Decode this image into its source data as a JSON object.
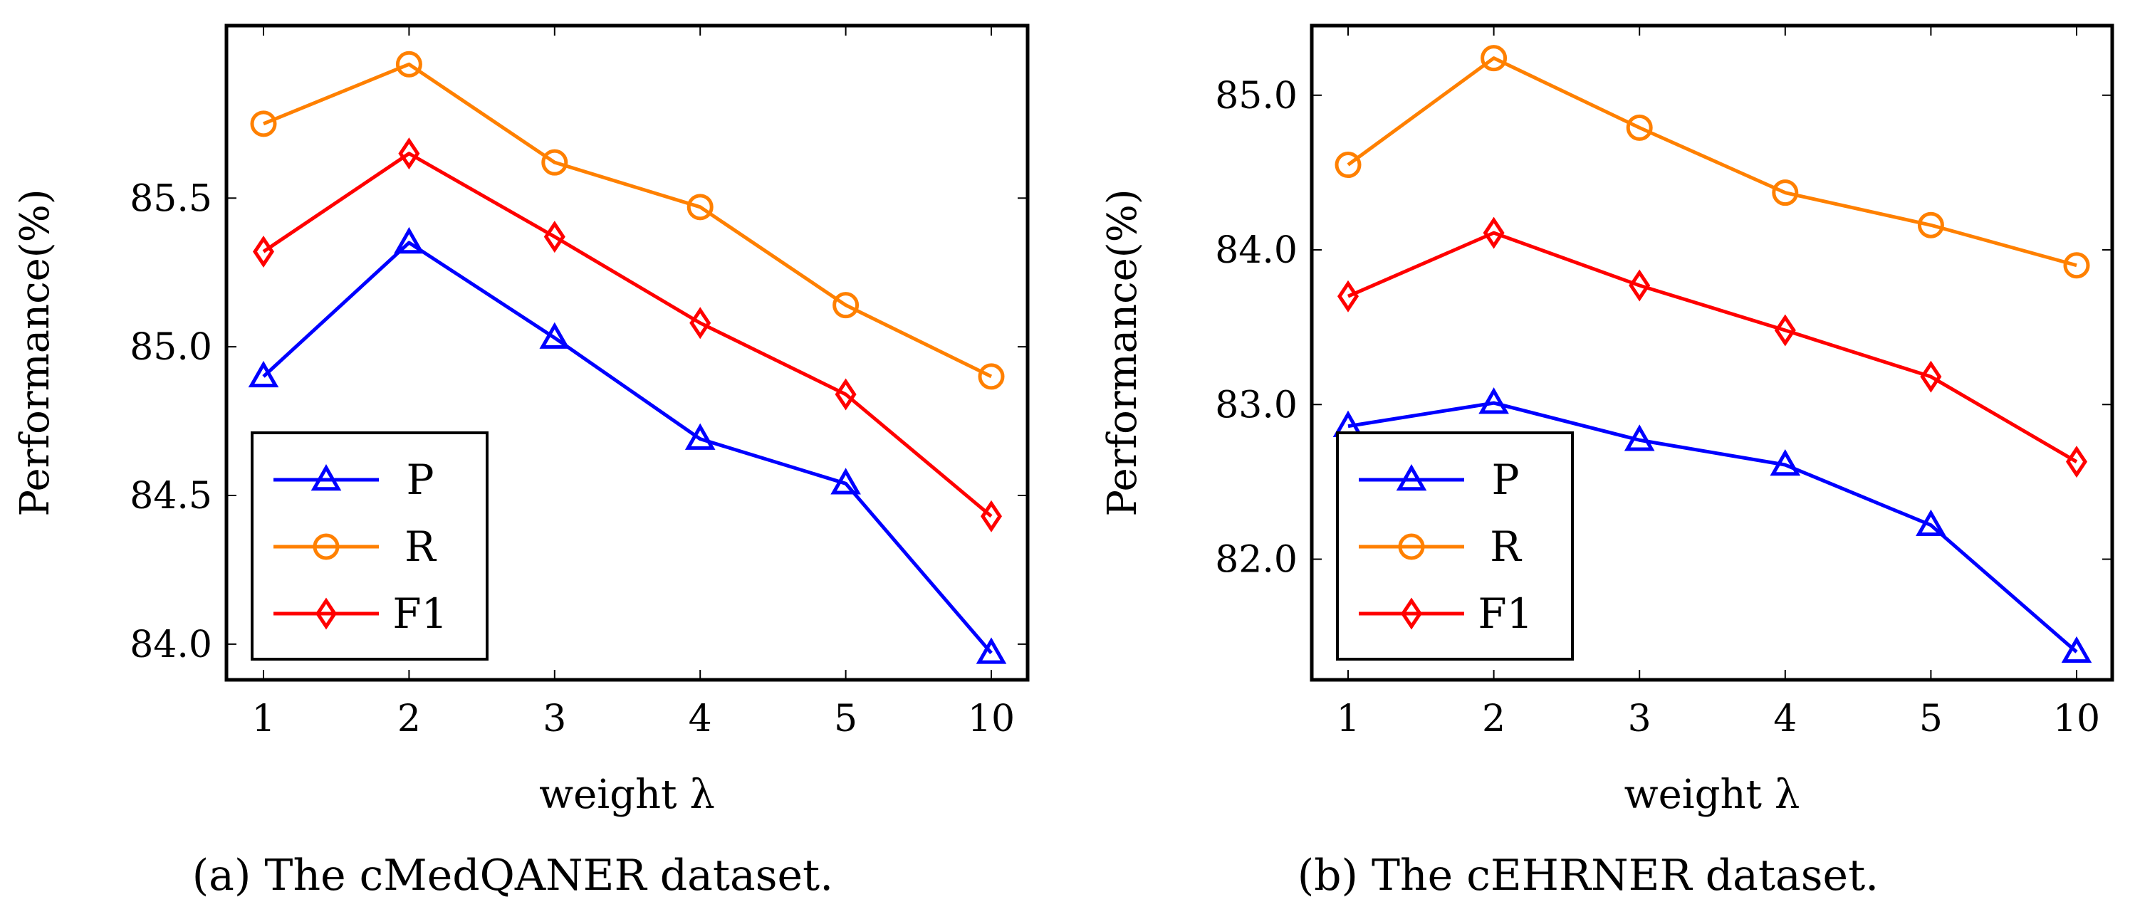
{
  "colors": {
    "P": "#0000ff",
    "R": "#ff8000",
    "F1": "#ff0000"
  },
  "legend": [
    {
      "key": "P",
      "label": "P",
      "marker": "triangle"
    },
    {
      "key": "R",
      "label": "R",
      "marker": "circle"
    },
    {
      "key": "F1",
      "label": "F1",
      "marker": "diamond"
    }
  ],
  "chart_data": [
    {
      "type": "line",
      "caption": "(a) The cMedQANER dataset.",
      "xlabel": "weight λ",
      "ylabel": "Performance(%)",
      "categories": [
        "1",
        "2",
        "3",
        "4",
        "5",
        "10"
      ],
      "ylim": [
        83.88,
        86.08
      ],
      "yticks": [
        84.0,
        84.5,
        85.0,
        85.5
      ],
      "ytick_labels": [
        "84.0",
        "84.5",
        "85.0",
        "85.5"
      ],
      "grid": false,
      "legend_position": "bottom-left",
      "series": [
        {
          "name": "P",
          "values": [
            84.9,
            85.35,
            85.03,
            84.69,
            84.54,
            83.97
          ]
        },
        {
          "name": "R",
          "values": [
            85.75,
            85.95,
            85.62,
            85.47,
            85.14,
            84.9
          ]
        },
        {
          "name": "F1",
          "values": [
            85.32,
            85.65,
            85.37,
            85.08,
            84.84,
            84.43
          ]
        }
      ]
    },
    {
      "type": "line",
      "caption": "(b) The cEHRNER dataset.",
      "xlabel": "weight λ",
      "ylabel": "Performance(%)",
      "categories": [
        "1",
        "2",
        "3",
        "4",
        "5",
        "10"
      ],
      "ylim": [
        81.22,
        85.45
      ],
      "yticks": [
        82.0,
        83.0,
        84.0,
        85.0
      ],
      "ytick_labels": [
        "82.0",
        "83.0",
        "84.0",
        "85.0"
      ],
      "grid": false,
      "legend_position": "bottom-left",
      "series": [
        {
          "name": "P",
          "values": [
            82.86,
            83.01,
            82.77,
            82.61,
            82.22,
            81.4
          ]
        },
        {
          "name": "R",
          "values": [
            84.55,
            85.24,
            84.79,
            84.37,
            84.16,
            83.9
          ]
        },
        {
          "name": "F1",
          "values": [
            83.7,
            84.11,
            83.77,
            83.48,
            83.18,
            82.63
          ]
        }
      ]
    }
  ]
}
